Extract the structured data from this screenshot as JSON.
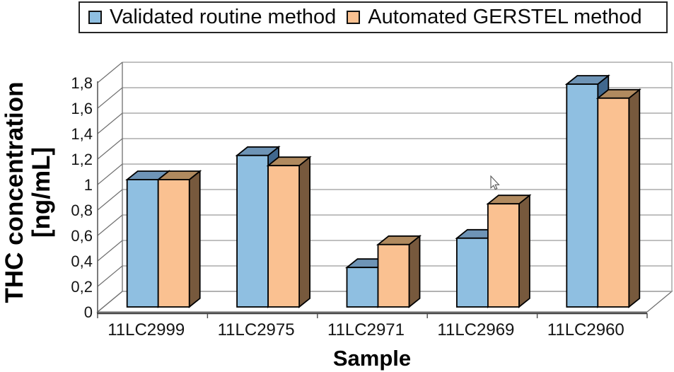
{
  "y_axis": {
    "title_line1": "THC concentration",
    "title_line2": "[ng/mL]",
    "tick_labels": [
      "0",
      "0,2",
      "0,4",
      "0,6",
      "0,8",
      "1",
      "1,2",
      "1,4",
      "1,6",
      "1,8"
    ]
  },
  "x_axis": {
    "title": "Sample"
  },
  "chart_data": {
    "type": "bar",
    "style": "3d-clustered-column",
    "title": "",
    "xlabel": "Sample",
    "ylabel": "THC concentration [ng/mL]",
    "ylim": [
      0,
      1.8
    ],
    "ytick_interval": 0.2,
    "decimal_separator": ",",
    "grid": true,
    "legend_position": "top",
    "categories": [
      "11LC2999",
      "11LC2975",
      "11LC2971",
      "11LC2969",
      "11LC2960"
    ],
    "series": [
      {
        "name": "Validated routine method",
        "color": "#8FBFE1",
        "color_top": "#6E94B6",
        "color_side": "#41688E",
        "values": [
          1.0,
          1.19,
          0.31,
          0.54,
          1.75
        ]
      },
      {
        "name": "Automated GERSTEL method",
        "color": "#FAC191",
        "color_top": "#B08A5F",
        "color_side": "#77593D",
        "values": [
          1.0,
          1.11,
          0.49,
          0.81,
          1.64
        ]
      }
    ]
  },
  "cursor": {
    "type": "arrow-pointer",
    "visible": true
  }
}
